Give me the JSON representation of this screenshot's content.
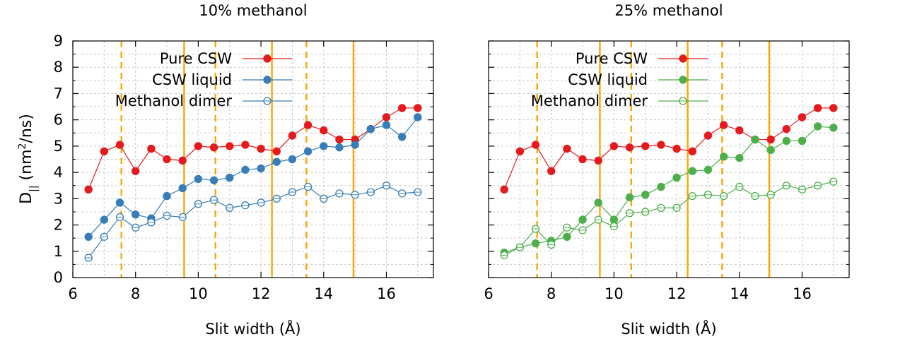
{
  "figure": {
    "ylabel_main": "D",
    "ylabel_sub": "||",
    "ylabel_unit_open": " (nm",
    "ylabel_unit_sup": "2",
    "ylabel_unit_close": "/ns)"
  },
  "colors": {
    "red": "#e41a1c",
    "blue": "#377eb8",
    "green": "#4daf4a",
    "orange": "#ffa500"
  },
  "chart_data": [
    {
      "type": "line",
      "title": "10% methanol",
      "xlabel": "Slit width (Å)",
      "xlim": [
        6,
        17.5
      ],
      "ylim": [
        0,
        9
      ],
      "xticks": [
        6,
        8,
        10,
        12,
        14,
        16
      ],
      "yticks": [
        0,
        1,
        2,
        3,
        4,
        5,
        6,
        7,
        8,
        9
      ],
      "grid": true,
      "legend_position": "top",
      "vlines": [
        {
          "x": 7.55,
          "style": "dashed"
        },
        {
          "x": 9.55,
          "style": "solid"
        },
        {
          "x": 10.55,
          "style": "dashed"
        },
        {
          "x": 12.35,
          "style": "solid"
        },
        {
          "x": 13.45,
          "style": "dashed"
        },
        {
          "x": 14.95,
          "style": "solid"
        }
      ],
      "x": [
        6.5,
        7.0,
        7.5,
        8.0,
        8.5,
        9.0,
        9.5,
        10.0,
        10.5,
        11.0,
        11.5,
        12.0,
        12.5,
        13.0,
        13.5,
        14.0,
        14.5,
        15.0,
        15.5,
        16.0,
        16.5,
        17.0
      ],
      "series": [
        {
          "name": "Pure CSW",
          "color": "red",
          "marker": "filled",
          "values": [
            3.35,
            4.8,
            5.05,
            4.05,
            4.9,
            4.5,
            4.45,
            5.0,
            4.95,
            5.0,
            5.05,
            4.9,
            4.8,
            5.4,
            5.8,
            5.6,
            5.25,
            5.25,
            5.65,
            6.1,
            6.45,
            6.45
          ]
        },
        {
          "name": "CSW liquid",
          "color": "blue",
          "marker": "filled",
          "values": [
            1.55,
            2.2,
            2.85,
            2.4,
            2.25,
            3.1,
            3.4,
            3.75,
            3.7,
            3.8,
            4.1,
            4.15,
            4.4,
            4.5,
            4.8,
            5.0,
            4.95,
            5.05,
            5.65,
            5.8,
            5.35,
            6.1
          ]
        },
        {
          "name": "Methanol dimer",
          "color": "blue",
          "marker": "open",
          "values": [
            0.75,
            1.55,
            2.3,
            1.9,
            2.1,
            2.35,
            2.3,
            2.8,
            2.95,
            2.65,
            2.75,
            2.85,
            3.0,
            3.25,
            3.45,
            3.0,
            3.2,
            3.15,
            3.25,
            3.5,
            3.2,
            3.25
          ]
        }
      ]
    },
    {
      "type": "line",
      "title": "25% methanol",
      "xlabel": "Slit width (Å)",
      "xlim": [
        6,
        17.5
      ],
      "ylim": [
        0,
        9
      ],
      "xticks": [
        6,
        8,
        10,
        12,
        14,
        16
      ],
      "yticks": [
        0,
        1,
        2,
        3,
        4,
        5,
        6,
        7,
        8,
        9
      ],
      "grid": true,
      "legend_position": "top",
      "vlines": [
        {
          "x": 7.55,
          "style": "dashed"
        },
        {
          "x": 9.55,
          "style": "solid"
        },
        {
          "x": 10.55,
          "style": "dashed"
        },
        {
          "x": 12.35,
          "style": "solid"
        },
        {
          "x": 13.45,
          "style": "dashed"
        },
        {
          "x": 14.95,
          "style": "solid"
        }
      ],
      "x": [
        6.5,
        7.0,
        7.5,
        8.0,
        8.5,
        9.0,
        9.5,
        10.0,
        10.5,
        11.0,
        11.5,
        12.0,
        12.5,
        13.0,
        13.5,
        14.0,
        14.5,
        15.0,
        15.5,
        16.0,
        16.5,
        17.0
      ],
      "series": [
        {
          "name": "Pure CSW",
          "color": "red",
          "marker": "filled",
          "values": [
            3.35,
            4.8,
            5.05,
            4.05,
            4.9,
            4.5,
            4.45,
            5.0,
            4.95,
            5.0,
            5.05,
            4.9,
            4.8,
            5.4,
            5.8,
            5.6,
            5.25,
            5.25,
            5.65,
            6.1,
            6.45,
            6.45
          ]
        },
        {
          "name": "CSW liquid",
          "color": "green",
          "marker": "filled",
          "values": [
            0.95,
            1.15,
            1.3,
            1.4,
            1.55,
            2.2,
            2.85,
            2.2,
            3.05,
            3.15,
            3.45,
            3.8,
            4.05,
            4.1,
            4.6,
            4.55,
            5.25,
            4.85,
            5.2,
            5.2,
            5.75,
            5.7
          ]
        },
        {
          "name": "Methanol dimer",
          "color": "green",
          "marker": "open",
          "values": [
            0.85,
            1.15,
            1.85,
            1.25,
            1.9,
            1.8,
            2.2,
            1.95,
            2.45,
            2.5,
            2.65,
            2.65,
            3.1,
            3.15,
            3.1,
            3.45,
            3.1,
            3.15,
            3.5,
            3.35,
            3.5,
            3.65
          ]
        }
      ]
    }
  ]
}
